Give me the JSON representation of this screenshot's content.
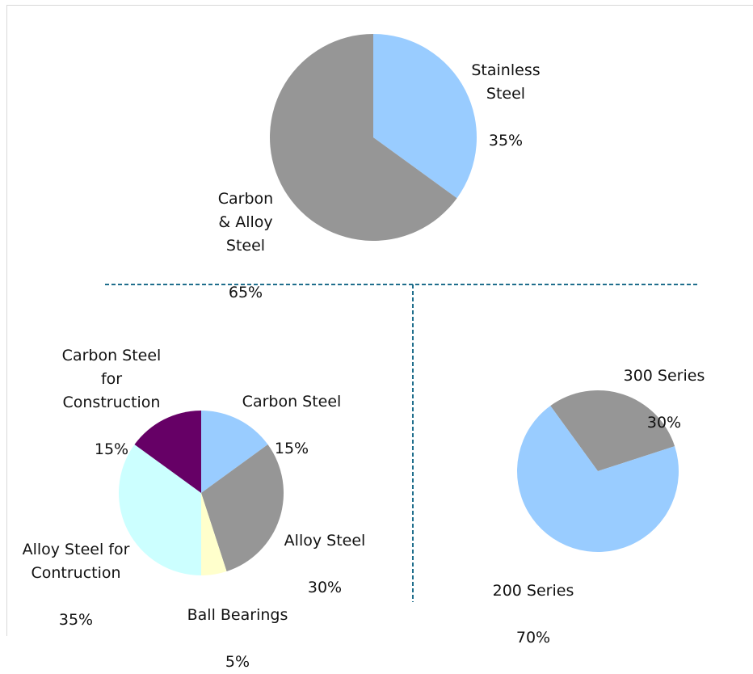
{
  "colors": {
    "stainless": "#99ccff",
    "carbon_alloy": "#969696",
    "carbon_construction": "#660066",
    "carbon_steel": "#99ccff",
    "alloy_steel": "#969696",
    "ball_bearings": "#ffffcc",
    "alloy_construction": "#ccffff",
    "series_300": "#969696",
    "series_200": "#99ccff",
    "divider": "#1f6e8c"
  },
  "chart_data": [
    {
      "type": "pie",
      "slices": [
        {
          "label": "Stainless\nSteel",
          "pct": "35%",
          "value": 35,
          "color_key": "stainless"
        },
        {
          "label": "Carbon\n& Alloy\nSteel",
          "pct": "65%",
          "value": 65,
          "color_key": "carbon_alloy"
        }
      ]
    },
    {
      "type": "pie",
      "slices": [
        {
          "label": "Carbon Steel",
          "pct": "15%",
          "value": 15,
          "color_key": "carbon_steel"
        },
        {
          "label": "Alloy Steel",
          "pct": "30%",
          "value": 30,
          "color_key": "alloy_steel"
        },
        {
          "label": "Ball Bearings",
          "pct": "5%",
          "value": 5,
          "color_key": "ball_bearings"
        },
        {
          "label": "Alloy Steel for\nContruction",
          "pct": "35%",
          "value": 35,
          "color_key": "alloy_construction"
        },
        {
          "label": "Carbon Steel\nfor\nConstruction",
          "pct": "15%",
          "value": 15,
          "color_key": "carbon_construction"
        }
      ]
    },
    {
      "type": "pie",
      "slices": [
        {
          "label": "300 Series",
          "pct": "30%",
          "value": 30,
          "color_key": "series_300"
        },
        {
          "label": "200 Series",
          "pct": "70%",
          "value": 70,
          "color_key": "series_200"
        }
      ]
    }
  ]
}
